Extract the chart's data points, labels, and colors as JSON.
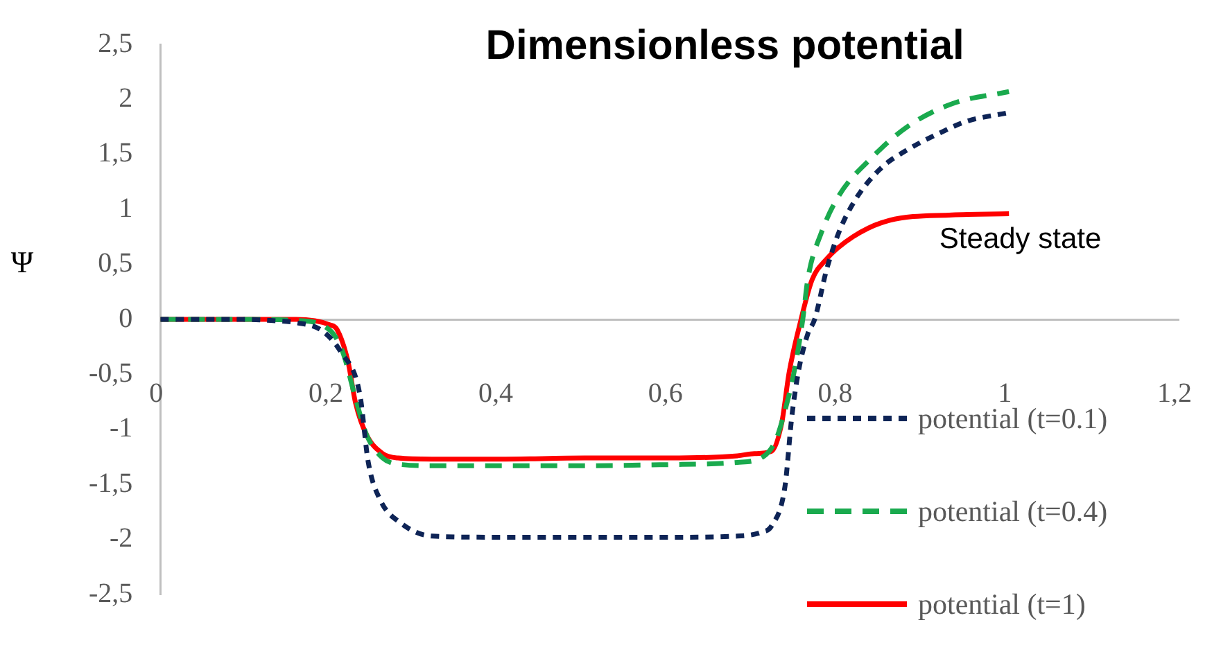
{
  "chart_data": {
    "type": "line",
    "title": "Dimensionless potential",
    "ylabel": "Ψ",
    "xlim": [
      0,
      1.2
    ],
    "xticks": [
      0,
      {
        "value": 0.2,
        "label": "0,2"
      },
      {
        "value": 0.4,
        "label": "0,4"
      },
      {
        "value": 0.6,
        "label": "0,6"
      },
      {
        "value": 0.8,
        "label": "0,8"
      },
      1,
      {
        "value": 1.2,
        "label": "1,2"
      }
    ],
    "ylim": [
      -2.5,
      2.5
    ],
    "yticks": [
      {
        "value": -2.5,
        "label": "-2,5"
      },
      -2,
      {
        "value": -1.5,
        "label": "-1,5"
      },
      -1,
      {
        "value": -0.5,
        "label": "-0,5"
      },
      0,
      {
        "value": 0.5,
        "label": "0,5"
      },
      1,
      {
        "value": 1.5,
        "label": "1,5"
      },
      2,
      {
        "value": 2.5,
        "label": "2,5"
      }
    ],
    "grid": false,
    "legend": "bottom right",
    "marker": "none",
    "annotations": [
      "Steady state"
    ],
    "series": [
      {
        "name": "potential (t=0.1)",
        "color": "#0e2456",
        "line_style": "dotted",
        "x": [
          0,
          0.1,
          0.13,
          0.16,
          0.19,
          0.213,
          0.235,
          0.245,
          0.259,
          0.283,
          0.32,
          0.4,
          0.5,
          0.6,
          0.68,
          0.71,
          0.72,
          0.736,
          0.744,
          0.752,
          0.763,
          0.771,
          0.785,
          0.8,
          0.82,
          0.85,
          0.88,
          0.92,
          0.95,
          1
        ],
        "values": [
          0,
          0,
          -0.01,
          -0.03,
          -0.1,
          -0.3,
          -0.68,
          -1.3,
          -1.64,
          -1.85,
          -1.97,
          -1.98,
          -1.98,
          -1.98,
          -1.97,
          -1.93,
          -1.88,
          -1.52,
          -0.89,
          -0.47,
          -0.13,
          0,
          0.45,
          0.8,
          1.1,
          1.38,
          1.54,
          1.7,
          1.8,
          1.88
        ]
      },
      {
        "name": "potential (t=0.4)",
        "color": "#1aaa4e",
        "line_style": "dashed",
        "x": [
          0,
          0.1,
          0.16,
          0.2,
          0.215,
          0.23,
          0.243,
          0.262,
          0.285,
          0.32,
          0.4,
          0.5,
          0.6,
          0.68,
          0.71,
          0.725,
          0.737,
          0.747,
          0.757,
          0.763,
          0.779,
          0.8,
          0.837,
          0.88,
          0.933,
          1
        ],
        "values": [
          0,
          0,
          -0.01,
          -0.1,
          -0.3,
          -0.72,
          -1.05,
          -1.26,
          -1.32,
          -1.33,
          -1.33,
          -1.33,
          -1.32,
          -1.3,
          -1.25,
          -1.1,
          -0.8,
          -0.47,
          0,
          0.37,
          0.79,
          1.13,
          1.46,
          1.75,
          1.96,
          2.07
        ]
      },
      {
        "name": "potential (t=1)",
        "color": "#ff0000",
        "line_style": "solid",
        "x": [
          0,
          0.1,
          0.16,
          0.2,
          0.208,
          0.221,
          0.23,
          0.243,
          0.262,
          0.28,
          0.32,
          0.4,
          0.5,
          0.6,
          0.68,
          0.7,
          0.72,
          0.732,
          0.741,
          0.755,
          0.768,
          0.784,
          0.816,
          0.859,
          0.933,
          1
        ],
        "values": [
          0,
          0,
          0,
          -0.05,
          -0.09,
          -0.38,
          -0.76,
          -1.05,
          -1.22,
          -1.26,
          -1.27,
          -1.27,
          -1.26,
          -1.26,
          -1.24,
          -1.22,
          -1.2,
          -0.95,
          -0.48,
          0,
          0.36,
          0.54,
          0.75,
          0.9,
          0.95,
          0.96
        ]
      }
    ]
  }
}
